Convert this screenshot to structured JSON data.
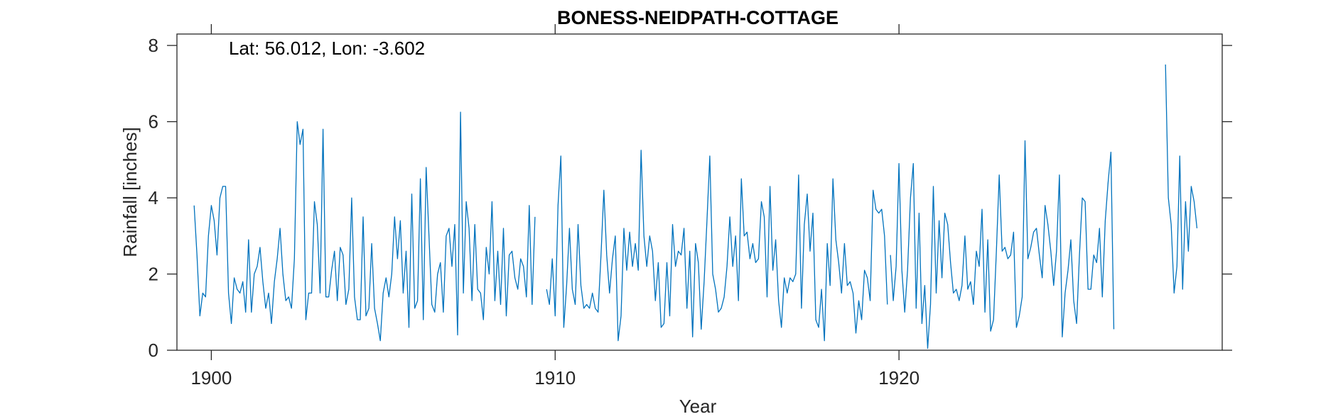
{
  "chart_data": {
    "type": "line",
    "title": "BONESS-NEIDPATH-COTTAGE",
    "annotation": "Lat: 56.012, Lon: -3.602",
    "xlabel": "Year",
    "ylabel": "Rainfall [inches]",
    "xlim": [
      1899,
      1929.4
    ],
    "ylim": [
      0,
      8.3
    ],
    "xticks": [
      1900,
      1910,
      1920
    ],
    "yticks": [
      0,
      2,
      4,
      6,
      8
    ],
    "grid": false,
    "series_color": "#0072BD",
    "series": [
      {
        "segments": [
          {
            "start": 1899.5,
            "step": 0.0833,
            "values": [
              3.8,
              2.5,
              0.9,
              1.5,
              1.4,
              3.0,
              3.8,
              3.4,
              2.5,
              4.0,
              4.3,
              4.3,
              1.5,
              0.7,
              1.9,
              1.6,
              1.5,
              1.8,
              1.0,
              2.9,
              1.0,
              2.0,
              2.2,
              2.7,
              1.8,
              1.1,
              1.5,
              0.7,
              1.8,
              2.4,
              3.2,
              2.0,
              1.3,
              1.4,
              1.1,
              2.4,
              6.0,
              5.4,
              5.8,
              0.8,
              1.5,
              1.5,
              3.9,
              3.3,
              1.5,
              5.8,
              1.4,
              1.4,
              2.1,
              2.6,
              1.3,
              2.7,
              2.5,
              1.2,
              1.6,
              4.0,
              1.4,
              0.8,
              0.8,
              3.5,
              0.9,
              1.1,
              2.8,
              1.1,
              0.7,
              0.25,
              1.5,
              1.9,
              1.4,
              2.0,
              3.5,
              2.4,
              3.4,
              1.5,
              2.6,
              0.6,
              4.1,
              1.1,
              1.3,
              4.5,
              0.8,
              4.8,
              3.0,
              1.2,
              1.0,
              2.0,
              2.3,
              1.0,
              3.0,
              3.2,
              2.2,
              3.3,
              0.4,
              6.25,
              1.5,
              3.9,
              3.2,
              1.3,
              3.3,
              1.6,
              1.5,
              0.8,
              2.7,
              2.0,
              3.9,
              1.3,
              2.6,
              1.2,
              3.2,
              0.9,
              2.5,
              2.6,
              1.9,
              1.6,
              2.4,
              2.2,
              1.4,
              3.8,
              1.2,
              3.5
            ]
          },
          {
            "start": 1909.75,
            "step": 0.0833,
            "values": [
              1.6,
              1.2,
              2.4,
              0.9,
              3.8,
              5.1,
              0.6,
              1.7,
              3.2,
              1.6,
              1.2,
              3.3,
              1.7,
              1.1,
              1.2,
              1.1,
              1.5,
              1.1,
              1.0,
              2.5,
              4.2,
              2.5,
              1.5,
              2.4,
              3.0,
              0.25,
              0.9,
              3.2,
              2.1,
              3.1,
              2.2,
              2.8,
              2.1,
              5.25,
              3.0,
              2.2,
              3.0,
              2.6,
              1.3,
              2.3,
              0.6,
              0.7,
              2.3,
              0.9,
              3.3,
              2.2,
              2.6,
              2.5,
              3.2,
              1.1,
              2.6,
              0.35,
              2.8,
              2.3,
              0.55,
              1.8,
              3.4,
              5.1,
              2.0,
              1.6,
              1.0,
              1.1,
              1.4,
              2.2,
              3.5,
              2.2,
              3.0,
              1.3,
              4.5,
              3.0,
              3.1,
              2.4,
              2.8,
              2.3,
              2.4,
              3.9,
              3.5,
              1.4,
              4.3,
              2.1,
              2.9,
              1.3,
              0.6,
              1.9,
              1.5,
              1.9,
              1.8,
              2.0,
              4.6,
              1.1,
              3.3,
              4.1,
              2.6,
              3.6,
              0.8,
              0.6,
              1.6,
              0.25,
              2.8,
              1.7,
              4.5,
              2.9,
              2.3,
              1.5,
              2.8,
              1.7,
              1.8,
              1.5,
              0.45,
              1.3,
              0.8,
              2.1,
              1.9,
              1.3,
              4.2,
              3.7,
              3.6,
              3.7,
              3.0,
              1.2
            ]
          },
          {
            "start": 1919.75,
            "step": 0.0833,
            "values": [
              2.5,
              1.3,
              2.2,
              4.9,
              2.1,
              1.0,
              2.1,
              4.0,
              4.9,
              1.1,
              3.6,
              0.7,
              1.7,
              0.05,
              1.2,
              4.3,
              1.5,
              3.4,
              1.9,
              3.6,
              3.3,
              2.3,
              1.5,
              1.6,
              1.3,
              1.7,
              3.0,
              1.6,
              1.8,
              1.2,
              2.6,
              2.2,
              3.7,
              1.0,
              2.9,
              0.5,
              0.8,
              2.6,
              4.6,
              2.6,
              2.7,
              2.4,
              2.5,
              3.1,
              0.6,
              0.9,
              1.4,
              5.5,
              2.4,
              2.7,
              3.1,
              3.2,
              2.5,
              1.9,
              3.8,
              3.3,
              2.6,
              1.7,
              2.6,
              4.6,
              0.35,
              1.5,
              2.1,
              2.9,
              1.3,
              0.7,
              2.5,
              4.0,
              3.9,
              1.6,
              1.6,
              2.5,
              2.3,
              3.2,
              1.4,
              3.4,
              4.4,
              5.2,
              0.55
            ]
          },
          {
            "start": 1927.75,
            "step": 0.0833,
            "values": [
              7.5,
              4.0,
              3.3,
              1.5,
              2.2,
              5.1,
              1.6,
              3.9,
              2.6,
              4.3,
              3.9,
              3.2
            ]
          }
        ]
      }
    ]
  }
}
